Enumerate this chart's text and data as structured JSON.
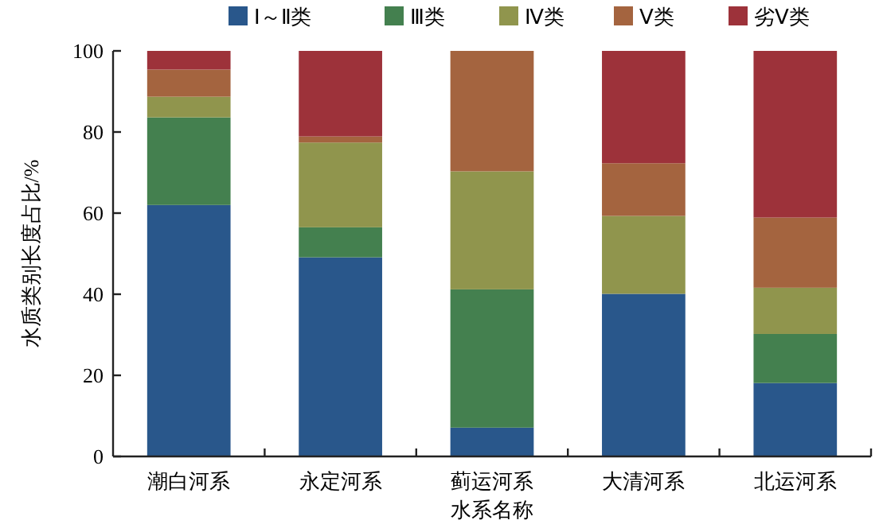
{
  "chart_data": {
    "type": "bar",
    "stacked": true,
    "xlabel": "水系名称",
    "ylabel": "水质类别长度占比/%",
    "categories": [
      "潮白河系",
      "永定河系",
      "蓟运河系",
      "大清河系",
      "北运河系"
    ],
    "ylim": [
      0,
      100
    ],
    "yticks": [
      0,
      20,
      40,
      60,
      80,
      100
    ],
    "legend": "top",
    "grid": false,
    "series": [
      {
        "name": "Ⅰ～Ⅱ类",
        "color": "#29578b",
        "values": [
          62.0,
          49.1,
          7.1,
          40.1,
          18.1
        ]
      },
      {
        "name": "Ⅲ类",
        "color": "#44804f",
        "values": [
          21.6,
          7.4,
          34.1,
          0,
          12.1
        ]
      },
      {
        "name": "Ⅳ类",
        "color": "#90954d",
        "values": [
          5.1,
          20.9,
          29.1,
          19.2,
          11.4
        ]
      },
      {
        "name": "Ⅴ类",
        "color": "#a4643f",
        "values": [
          6.7,
          1.5,
          29.7,
          13.0,
          17.3
        ]
      },
      {
        "name": "劣Ⅴ类",
        "color": "#9d323a",
        "values": [
          4.6,
          21.1,
          0,
          27.7,
          41.1
        ]
      }
    ]
  }
}
